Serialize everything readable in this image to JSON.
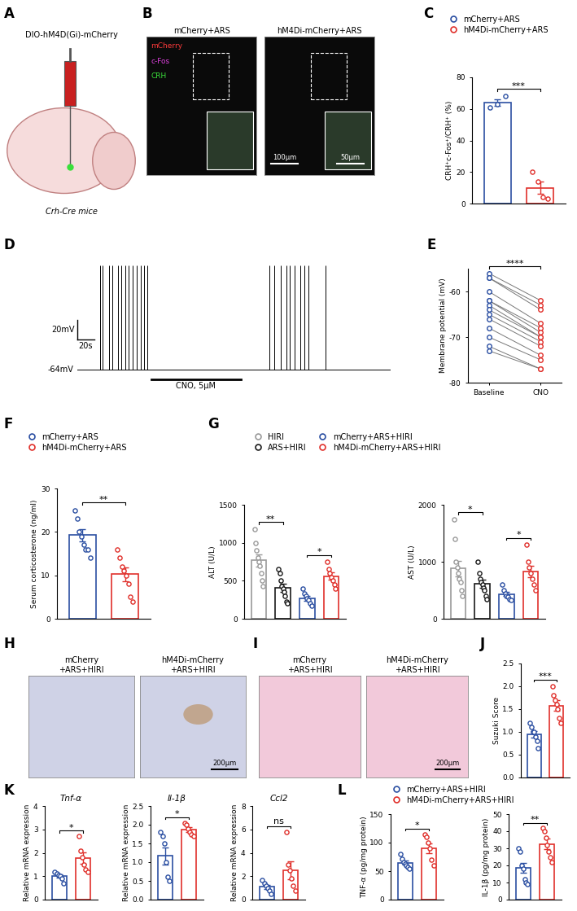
{
  "panels": [
    {
      "panel_label": "A",
      "type": "schematic",
      "texts": [
        "DIO-hM4D(Gi)-mCherry",
        "Crh-Cre mice"
      ]
    },
    {
      "panel_label": "B",
      "type": "micrographs",
      "images": [
        {
          "title": "mCherry+ARS",
          "channels": [
            {
              "name": "mCherry",
              "color": "#ff3b3b"
            },
            {
              "name": "c-Fos",
              "color": "#e040e0"
            },
            {
              "name": "CRH",
              "color": "#3ae03a"
            }
          ]
        },
        {
          "title": "hM4Di-mCherry+ARS",
          "scale_bars": [
            "100μm",
            "50μm"
          ]
        }
      ]
    },
    {
      "panel_label": "H",
      "type": "micrographs",
      "images": [
        {
          "title": "mCherry\n+ARS+HIRI"
        },
        {
          "title": "hM4Di-mCherry\n+ARS+HIRI",
          "scale_bars": [
            "200μm"
          ]
        }
      ]
    },
    {
      "panel_label": "I",
      "type": "micrographs",
      "images": [
        {
          "title": "mCherry\n+ARS+HIRI"
        },
        {
          "title": "hM4Di-mCherry\n+ARS+HIRI",
          "scale_bars": [
            "200μm"
          ]
        }
      ]
    }
  ],
  "chart_data": [
    {
      "panel_label": "C",
      "type": "bar",
      "ylabel": "CRH⁺c-Fos⁺/CRH⁺ (%)",
      "ylim": [
        0,
        80
      ],
      "yticks": [
        0,
        20,
        40,
        60,
        80
      ],
      "legend": "top",
      "tick_labels": "y",
      "series": [
        {
          "name": "mCherry+ARS",
          "color": "#2b4fa2",
          "values": [
            64
          ],
          "errors": [
            2.2
          ],
          "points": [
            61,
            63,
            68
          ]
        },
        {
          "name": "hM4Di-mCherry+ARS",
          "color": "#e0302b",
          "values": [
            10
          ],
          "errors": [
            4
          ],
          "points": [
            20,
            14,
            4,
            3
          ]
        }
      ],
      "annotations": [
        {
          "text": "***",
          "between": [
            0,
            1
          ]
        }
      ]
    },
    {
      "panel_label": "D",
      "type": "trace",
      "xlim": [
        0,
        370
      ],
      "ylim": [
        -85,
        45
      ],
      "tick_labels": false,
      "baseline": -64,
      "baseline_label": "-64mV",
      "spike_peak": 40,
      "spike_times": [
        27,
        30,
        37,
        41,
        48,
        52,
        57,
        61,
        65,
        70,
        75,
        79,
        83,
        227,
        233,
        240,
        247,
        251,
        257,
        263,
        268,
        273,
        293
      ],
      "scale_bar": {
        "x": 20,
        "x_label": "20s",
        "y": 20,
        "y_label": "20mV"
      },
      "drug": {
        "label": "CNO, 5μM",
        "start": 87,
        "end": 193
      }
    },
    {
      "panel_label": "E",
      "type": "paired",
      "ylabel": "Membrane potential (mV)",
      "categories": [
        "Baseline",
        "CNO"
      ],
      "colors": [
        "#2b4fa2",
        "#e0302b"
      ],
      "ylim": [
        -80,
        -55
      ],
      "yticks": [
        -80,
        -70,
        -60
      ],
      "pairs": [
        [
          -56,
          -62
        ],
        [
          -57,
          -63
        ],
        [
          -57,
          -64
        ],
        [
          -60,
          -67
        ],
        [
          -62,
          -68
        ],
        [
          -62,
          -69
        ],
        [
          -63,
          -70
        ],
        [
          -64,
          -70
        ],
        [
          -65,
          -71
        ],
        [
          -66,
          -72
        ],
        [
          -68,
          -74
        ],
        [
          -70,
          -75
        ],
        [
          -72,
          -77
        ],
        [
          -73,
          -77
        ]
      ],
      "annotations": [
        {
          "text": "****",
          "between": [
            0,
            1
          ]
        }
      ]
    },
    {
      "panel_label": "F",
      "type": "bar",
      "ylabel": "Serum corticosterone (ng/ml)",
      "ylim": [
        0,
        30
      ],
      "yticks": [
        0,
        10,
        20,
        30
      ],
      "legend": "top",
      "tick_labels": "y",
      "series": [
        {
          "name": "mCherry+ARS",
          "color": "#2b4fa2",
          "values": [
            19.3
          ],
          "errors": [
            1.4
          ],
          "points": [
            25,
            23,
            20,
            19,
            17,
            16,
            16,
            14
          ]
        },
        {
          "name": "hM4Di-mCherry+ARS",
          "color": "#e0302b",
          "values": [
            10.3
          ],
          "errors": [
            1.6
          ],
          "points": [
            16,
            14,
            12,
            11,
            10,
            8,
            5,
            4
          ]
        }
      ],
      "annotations": [
        {
          "text": "**",
          "between": [
            0,
            1
          ]
        }
      ]
    },
    {
      "panel_label": "G",
      "type": "bar",
      "ylabel": "ALT (U/L)",
      "ylim": [
        0,
        1500
      ],
      "yticks": [
        0,
        500,
        1000,
        1500
      ],
      "legend": "top",
      "tick_labels": "y",
      "series": [
        {
          "name": "HIRI",
          "color": "#9a9a9a",
          "values": [
            770
          ],
          "errors": [
            80
          ],
          "points": [
            1180,
            1000,
            900,
            800,
            750,
            700,
            600,
            500,
            430
          ]
        },
        {
          "name": "ARS+HIRI",
          "color": "#1a1a1a",
          "values": [
            410
          ],
          "errors": [
            55
          ],
          "points": [
            650,
            600,
            500,
            430,
            400,
            350,
            300,
            220,
            200
          ]
        },
        {
          "name": "mCherry+ARS+HIRI",
          "color": "#2b4fa2",
          "values": [
            270
          ],
          "errors": [
            30
          ],
          "points": [
            400,
            330,
            300,
            270,
            250,
            200,
            170
          ]
        },
        {
          "name": "hM4Di-mCherry+ARS+HIRI",
          "color": "#e0302b",
          "values": [
            560
          ],
          "errors": [
            50
          ],
          "points": [
            750,
            650,
            600,
            550,
            500,
            450,
            400
          ]
        }
      ],
      "annotations": [
        {
          "text": "**",
          "between": [
            0,
            1
          ]
        },
        {
          "text": "*",
          "between": [
            2,
            3
          ]
        }
      ]
    },
    {
      "panel_label": "G",
      "type": "bar",
      "ylabel": "AST (U/L)",
      "ylim": [
        0,
        2000
      ],
      "yticks": [
        0,
        1000,
        2000
      ],
      "tick_labels": "y",
      "series": [
        {
          "color": "#9a9a9a",
          "values": [
            880
          ],
          "errors": [
            140
          ],
          "points": [
            1750,
            1400,
            1000,
            900,
            800,
            700,
            650,
            500,
            400
          ]
        },
        {
          "color": "#1a1a1a",
          "values": [
            620
          ],
          "errors": [
            70
          ],
          "points": [
            1000,
            800,
            700,
            650,
            600,
            550,
            500,
            400,
            350
          ]
        },
        {
          "color": "#2b4fa2",
          "values": [
            430
          ],
          "errors": [
            35
          ],
          "points": [
            600,
            500,
            450,
            400,
            380,
            350,
            330
          ]
        },
        {
          "color": "#e0302b",
          "values": [
            830
          ],
          "errors": [
            100
          ],
          "points": [
            1300,
            1000,
            900,
            800,
            700,
            600,
            500
          ]
        }
      ],
      "annotations": [
        {
          "text": "*",
          "between": [
            0,
            1
          ]
        },
        {
          "text": "*",
          "between": [
            2,
            3
          ]
        }
      ]
    },
    {
      "panel_label": "J",
      "type": "bar",
      "ylabel": "Suzuki Score",
      "ylim": [
        0,
        2.5
      ],
      "tick_labels": "y",
      "yticks": [
        {
          "value": 0,
          "label": "0.0"
        },
        {
          "value": 0.5,
          "label": "0.5"
        },
        {
          "value": 1.0,
          "label": "1.0"
        },
        {
          "value": 1.5,
          "label": "1.5"
        },
        {
          "value": 2.0,
          "label": "2.0"
        },
        {
          "value": 2.5,
          "label": "2.5"
        }
      ],
      "series": [
        {
          "color": "#2b4fa2",
          "values": [
            0.95
          ],
          "errors": [
            0.07
          ],
          "points": [
            1.2,
            1.1,
            1.0,
            1.0,
            0.9,
            0.8,
            0.65
          ]
        },
        {
          "color": "#e0302b",
          "values": [
            1.58
          ],
          "errors": [
            0.11
          ],
          "points": [
            2.0,
            1.8,
            1.7,
            1.6,
            1.5,
            1.3,
            1.2
          ]
        }
      ],
      "annotations": [
        {
          "text": "***",
          "between": [
            0,
            1
          ]
        }
      ]
    },
    {
      "panel_label": "K",
      "type": "bar",
      "title": "Tnf-α",
      "ylabel": "Relative mRNA expression",
      "ylim": [
        0,
        4
      ],
      "yticks": [
        0,
        1,
        2,
        3,
        4
      ],
      "tick_labels": "y",
      "series": [
        {
          "color": "#2b4fa2",
          "values": [
            1.0
          ],
          "errors": [
            0.07
          ],
          "points": [
            1.2,
            1.1,
            1.05,
            1.0,
            0.9,
            0.7
          ]
        },
        {
          "color": "#e0302b",
          "values": [
            1.78
          ],
          "errors": [
            0.24
          ],
          "points": [
            2.7,
            2.1,
            1.8,
            1.5,
            1.3,
            1.2
          ]
        }
      ],
      "annotations": [
        {
          "text": "*",
          "between": [
            0,
            1
          ]
        }
      ]
    },
    {
      "panel_label": "K",
      "type": "bar",
      "title": "Il-1β",
      "ylabel": "Relative mRNA expression",
      "ylim": [
        0,
        2.5
      ],
      "tick_labels": "y",
      "yticks": [
        {
          "value": 0,
          "label": "0.0"
        },
        {
          "value": 0.5,
          "label": "0.5"
        },
        {
          "value": 1.0,
          "label": "1.0"
        },
        {
          "value": 1.5,
          "label": "1.5"
        },
        {
          "value": 2.0,
          "label": "2.0"
        },
        {
          "value": 2.5,
          "label": "2.5"
        }
      ],
      "series": [
        {
          "color": "#2b4fa2",
          "values": [
            1.17
          ],
          "errors": [
            0.23
          ],
          "points": [
            1.8,
            1.7,
            1.5,
            1.0,
            0.6,
            0.5
          ]
        },
        {
          "color": "#e0302b",
          "values": [
            1.87
          ],
          "errors": [
            0.06
          ],
          "points": [
            2.05,
            2.0,
            1.9,
            1.8,
            1.75,
            1.7
          ]
        }
      ],
      "annotations": [
        {
          "text": "*",
          "between": [
            0,
            1
          ]
        }
      ]
    },
    {
      "panel_label": "K",
      "type": "bar",
      "title": "Ccl2",
      "ylabel": "Relative mRNA expression",
      "ylim": [
        0,
        8
      ],
      "yticks": [
        0,
        2,
        4,
        6,
        8
      ],
      "tick_labels": "y",
      "series": [
        {
          "color": "#2b4fa2",
          "values": [
            1.1
          ],
          "errors": [
            0.18
          ],
          "points": [
            1.7,
            1.4,
            1.2,
            1.0,
            0.8,
            0.5
          ]
        },
        {
          "color": "#e0302b",
          "values": [
            2.5
          ],
          "errors": [
            0.75
          ],
          "points": [
            5.8,
            3.0,
            2.5,
            1.8,
            1.2,
            0.8
          ]
        }
      ],
      "annotations": [
        {
          "text": "ns",
          "between": [
            0,
            1
          ]
        }
      ]
    },
    {
      "panel_label": "L",
      "type": "bar",
      "ylabel": "TNF-α (pg/mg protein)",
      "ylim": [
        0,
        150
      ],
      "yticks": [
        0,
        50,
        100,
        150
      ],
      "legend": "top",
      "tick_labels": "y",
      "series": [
        {
          "name": "mCherry+ARS+HIRI",
          "color": "#2b4fa2",
          "values": [
            65
          ],
          "errors": [
            3.5
          ],
          "points": [
            80,
            72,
            66,
            63,
            60,
            57,
            55
          ]
        },
        {
          "name": "hM4Di-mCherry+ARS+HIRI",
          "color": "#e0302b",
          "values": [
            90
          ],
          "errors": [
            9
          ],
          "points": [
            115,
            110,
            100,
            90,
            70,
            60
          ]
        }
      ],
      "annotations": [
        {
          "text": "*",
          "between": [
            0,
            1
          ]
        }
      ]
    },
    {
      "panel_label": "L",
      "type": "bar",
      "ylabel": "IL-1β (pg/mg protein)",
      "ylim": [
        0,
        50
      ],
      "yticks": [
        0,
        10,
        20,
        30,
        40,
        50
      ],
      "tick_labels": "y",
      "series": [
        {
          "color": "#2b4fa2",
          "values": [
            18.5
          ],
          "errors": [
            3
          ],
          "points": [
            30,
            28,
            20,
            18,
            12,
            10,
            9
          ]
        },
        {
          "color": "#e0302b",
          "values": [
            32.5
          ],
          "errors": [
            3
          ],
          "points": [
            42,
            40,
            36,
            32,
            28,
            25,
            22
          ]
        }
      ],
      "annotations": [
        {
          "text": "**",
          "between": [
            0,
            1
          ]
        }
      ]
    }
  ]
}
